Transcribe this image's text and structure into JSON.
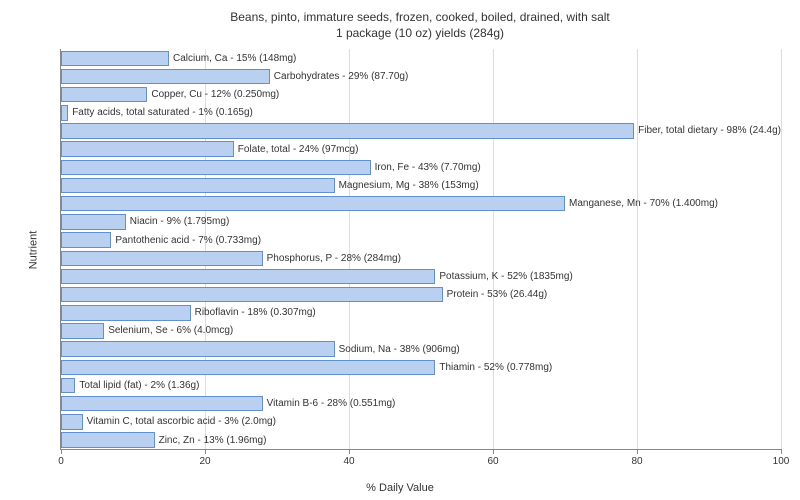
{
  "chart": {
    "type": "bar",
    "title_line1": "Beans, pinto, immature seeds, frozen, cooked, boiled, drained, with salt",
    "title_line2": "1 package (10 oz) yields (284g)",
    "y_axis_label": "Nutrient",
    "x_axis_label": "% Daily Value",
    "x_max": 100,
    "x_ticks": [
      0,
      20,
      40,
      60,
      80,
      100
    ],
    "bar_color": "#b9d0f0",
    "bar_border_color": "#6090d0",
    "grid_color": "#dddddd",
    "text_color": "#333333",
    "background_color": "#ffffff",
    "title_fontsize": 12,
    "label_fontsize": 11,
    "tick_fontsize": 10,
    "bar_label_fontsize": 10,
    "nutrients": [
      {
        "label": "Calcium, Ca - 15% (148mg)",
        "value": 15
      },
      {
        "label": "Carbohydrates - 29% (87.70g)",
        "value": 29
      },
      {
        "label": "Copper, Cu - 12% (0.250mg)",
        "value": 12
      },
      {
        "label": "Fatty acids, total saturated - 1% (0.165g)",
        "value": 1
      },
      {
        "label": "Fiber, total dietary - 98% (24.4g)",
        "value": 98
      },
      {
        "label": "Folate, total - 24% (97mcg)",
        "value": 24
      },
      {
        "label": "Iron, Fe - 43% (7.70mg)",
        "value": 43
      },
      {
        "label": "Magnesium, Mg - 38% (153mg)",
        "value": 38
      },
      {
        "label": "Manganese, Mn - 70% (1.400mg)",
        "value": 70
      },
      {
        "label": "Niacin - 9% (1.795mg)",
        "value": 9
      },
      {
        "label": "Pantothenic acid - 7% (0.733mg)",
        "value": 7
      },
      {
        "label": "Phosphorus, P - 28% (284mg)",
        "value": 28
      },
      {
        "label": "Potassium, K - 52% (1835mg)",
        "value": 52
      },
      {
        "label": "Protein - 53% (26.44g)",
        "value": 53
      },
      {
        "label": "Riboflavin - 18% (0.307mg)",
        "value": 18
      },
      {
        "label": "Selenium, Se - 6% (4.0mcg)",
        "value": 6
      },
      {
        "label": "Sodium, Na - 38% (906mg)",
        "value": 38
      },
      {
        "label": "Thiamin - 52% (0.778mg)",
        "value": 52
      },
      {
        "label": "Total lipid (fat) - 2% (1.36g)",
        "value": 2
      },
      {
        "label": "Vitamin B-6 - 28% (0.551mg)",
        "value": 28
      },
      {
        "label": "Vitamin C, total ascorbic acid - 3% (2.0mg)",
        "value": 3
      },
      {
        "label": "Zinc, Zn - 13% (1.96mg)",
        "value": 13
      }
    ]
  }
}
